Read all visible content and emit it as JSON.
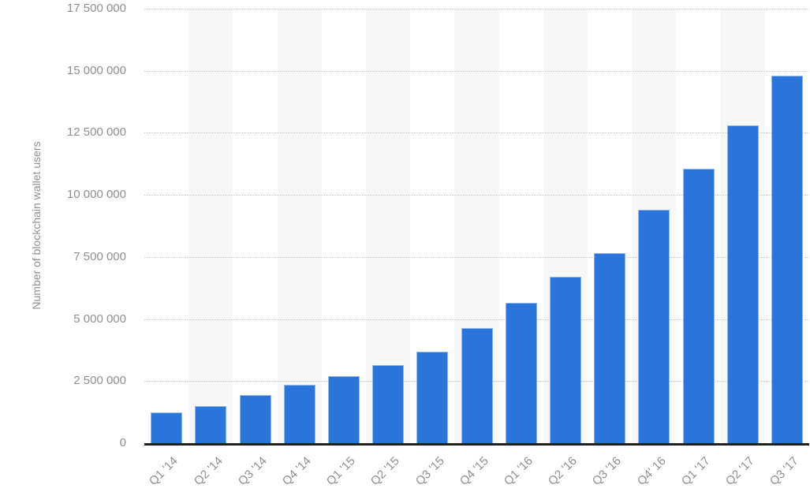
{
  "page": {
    "background": "#ffffff"
  },
  "chart_data": {
    "type": "bar",
    "title": "",
    "xlabel": "",
    "ylabel": "Number of blockchain wallet users",
    "categories": [
      "Q1 '14",
      "Q2 '14",
      "Q3 '14",
      "Q4 '14",
      "Q1 '15",
      "Q2 '15",
      "Q3 '15",
      "Q4 '15",
      "Q1 '16",
      "Q2 '16",
      "Q3 '16",
      "Q4' 16",
      "Q1 '17",
      "Q2 '17",
      "Q3 '17"
    ],
    "values": [
      1250000,
      1500000,
      1950000,
      2350000,
      2700000,
      3150000,
      3700000,
      4650000,
      5650000,
      6700000,
      7650000,
      9400000,
      11050000,
      12800000,
      14800000
    ],
    "ylim": [
      0,
      17500000
    ],
    "ytick_step": 2500000,
    "ytick_labels": [
      "0",
      "2 500 000",
      "5 000 000",
      "7 500 000",
      "10 000 000",
      "12 500 000",
      "15 000 000",
      "17 500 000"
    ],
    "grid": "horizontal-dotted",
    "legend": "none",
    "band_alternation": "odd-categories-shaded",
    "colors": {
      "bar": "#2b74dc",
      "bar_border": "#8fb9ea",
      "axis_label": "#8f8f8f",
      "gridline": "#c9c9c9",
      "axis_line": "#1f1f1f",
      "band_alt": "#f7f7f7"
    }
  }
}
